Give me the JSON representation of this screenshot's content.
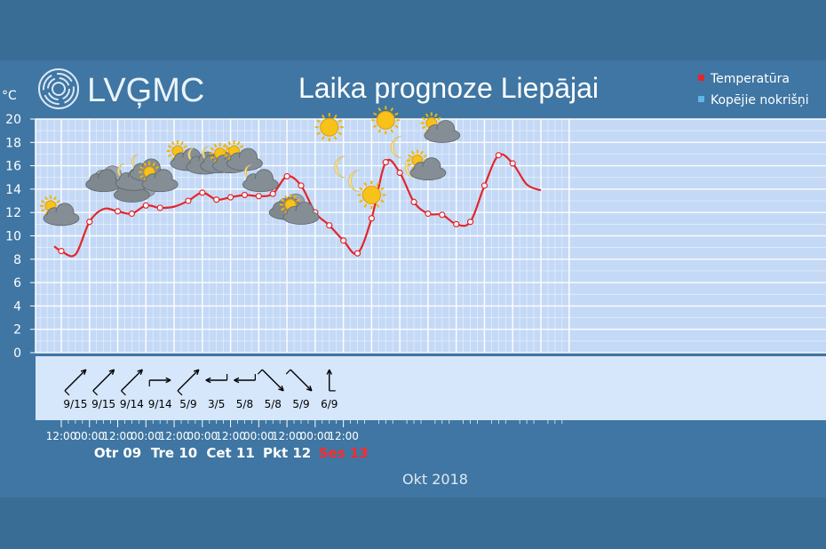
{
  "header": {
    "logo_text": "LVĢMC",
    "title": "Laika prognoze Liepājai"
  },
  "legend": [
    {
      "label": "Temperatūra",
      "color": "#e3262b"
    },
    {
      "label": "Kopējie nokrišņi",
      "color": "#5fb6e9"
    }
  ],
  "colors": {
    "background": "#3f76a3",
    "plot_background": "#c4d9f6",
    "wind_background": "#d6e6fb",
    "grid": "#ffffff",
    "temperature_line": "#e3262b"
  },
  "chart_data": {
    "type": "line",
    "ylabel": "°C",
    "ylim": [
      0,
      20
    ],
    "yticks": [
      0,
      2,
      4,
      6,
      8,
      10,
      12,
      14,
      16,
      18,
      20
    ],
    "grid": true,
    "legend_position": "top-right",
    "series": [
      {
        "name": "Temperatūra",
        "hours": [
          -3,
          0,
          6,
          12,
          18,
          24,
          30,
          36,
          42,
          48,
          54,
          60,
          66,
          72,
          78,
          84,
          90,
          96,
          102,
          108,
          114,
          120,
          126,
          132,
          138,
          144,
          150,
          156,
          162,
          168,
          174,
          180,
          186,
          192,
          198,
          204
        ],
        "values": [
          9.1,
          8.7,
          8.4,
          11.2,
          12.3,
          12.1,
          11.9,
          12.6,
          12.4,
          12.5,
          13.0,
          13.7,
          13.1,
          13.3,
          13.5,
          13.4,
          13.6,
          15.1,
          14.3,
          12.0,
          10.9,
          9.6,
          8.5,
          11.5,
          16.3,
          15.4,
          12.9,
          11.9,
          11.8,
          11.0,
          11.2,
          14.3,
          16.9,
          16.2,
          14.4,
          13.9
        ]
      }
    ],
    "marker_hours": [
      0,
      12,
      24,
      30,
      36,
      42,
      54,
      60,
      66,
      72,
      78,
      84,
      90,
      96,
      102,
      108,
      114,
      120,
      126,
      132,
      138,
      144,
      150,
      156,
      162,
      168,
      174,
      180,
      186,
      192
    ],
    "x_ticks": [
      "12:00",
      "00:00",
      "12:00",
      "00:00",
      "12:00",
      "00:00",
      "12:00",
      "00:00",
      "12:00",
      "00:00",
      "12:00"
    ],
    "days": [
      {
        "label": "Otr 09",
        "weekend": false
      },
      {
        "label": "Tre 10",
        "weekend": false
      },
      {
        "label": "Cet 11",
        "weekend": false
      },
      {
        "label": "Pkt 12",
        "weekend": false
      },
      {
        "label": "Ses 13",
        "weekend": true
      }
    ],
    "month": "Okt 2018",
    "weather_icons": [
      {
        "hour": 0,
        "value": 11.8,
        "icon": "partly-cloudy-day-icon"
      },
      {
        "hour": 18,
        "value": 14.7,
        "icon": "overcast-icon"
      },
      {
        "hour": 30,
        "value": 13.8,
        "icon": "overcast-icon"
      },
      {
        "hour": 30,
        "value": 14.8,
        "icon": "partly-cloudy-night-icon"
      },
      {
        "hour": 36,
        "value": 15.6,
        "icon": "partly-cloudy-night-icon"
      },
      {
        "hour": 42,
        "value": 14.7,
        "icon": "partly-cloudy-day-icon"
      },
      {
        "hour": 54,
        "value": 16.5,
        "icon": "partly-cloudy-day-icon"
      },
      {
        "hour": 60,
        "value": 16.2,
        "icon": "partly-cloudy-night-icon"
      },
      {
        "hour": 66,
        "value": 16.3,
        "icon": "partly-cloudy-night-icon"
      },
      {
        "hour": 72,
        "value": 16.3,
        "icon": "partly-cloudy-day-icon"
      },
      {
        "hour": 78,
        "value": 16.5,
        "icon": "partly-cloudy-day-icon"
      },
      {
        "hour": 84,
        "value": 14.7,
        "icon": "partly-cloudy-night-icon"
      },
      {
        "hour": 96,
        "value": 12.3,
        "icon": "overcast-icon"
      },
      {
        "hour": 102,
        "value": 11.9,
        "icon": "partly-cloudy-day-icon"
      },
      {
        "hour": 114,
        "value": 19.3,
        "icon": "sun-icon"
      },
      {
        "hour": 120,
        "value": 15.9,
        "icon": "moon-icon"
      },
      {
        "hour": 126,
        "value": 14.7,
        "icon": "moon-icon"
      },
      {
        "hour": 132,
        "value": 13.5,
        "icon": "sun-icon"
      },
      {
        "hour": 138,
        "value": 19.9,
        "icon": "sun-icon"
      },
      {
        "hour": 144,
        "value": 17.6,
        "icon": "moon-icon"
      },
      {
        "hour": 150,
        "value": 15.9,
        "icon": "moon-icon"
      },
      {
        "hour": 156,
        "value": 15.7,
        "icon": "partly-cloudy-day-icon"
      },
      {
        "hour": 162,
        "value": 18.9,
        "icon": "partly-cloudy-day-icon"
      }
    ],
    "wind": [
      {
        "hour": 6,
        "label": "9/15",
        "direction": "sw"
      },
      {
        "hour": 18,
        "label": "9/15",
        "direction": "sw"
      },
      {
        "hour": 30,
        "label": "9/14",
        "direction": "sw"
      },
      {
        "hour": 42,
        "label": "9/14",
        "direction": "w"
      },
      {
        "hour": 54,
        "label": "5/9",
        "direction": "sw"
      },
      {
        "hour": 66,
        "label": "3/5",
        "direction": "e"
      },
      {
        "hour": 78,
        "label": "5/8",
        "direction": "e"
      },
      {
        "hour": 90,
        "label": "5/8",
        "direction": "nw"
      },
      {
        "hour": 102,
        "label": "5/9",
        "direction": "nw"
      },
      {
        "hour": 114,
        "label": "6/9",
        "direction": "s"
      }
    ]
  }
}
